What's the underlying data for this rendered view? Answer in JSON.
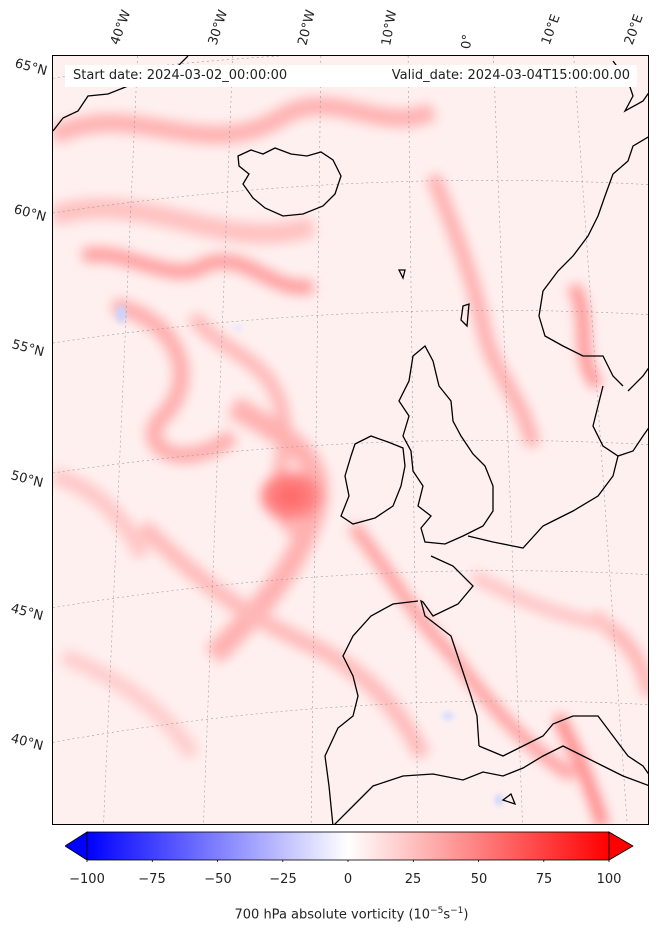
{
  "header": {
    "start_date": "Start date: 2024-03-02_00:00:00",
    "valid_date": "Valid_date: 2024-03-04T15:00:00.00"
  },
  "longitude_labels": [
    "40°W",
    "30°W",
    "20°W",
    "10°W",
    "0°",
    "10°E",
    "20°E"
  ],
  "latitude_labels": [
    "65°N",
    "60°N",
    "55°N",
    "50°N",
    "45°N",
    "40°N"
  ],
  "colorbar": {
    "ticks": [
      "−100",
      "−75",
      "−50",
      "−25",
      "0",
      "25",
      "50",
      "75",
      "100"
    ],
    "title": "700 hPa absolute vorticity (10",
    "title_exp1": "−5",
    "title_mid": "s",
    "title_exp2": "−1",
    "title_end": ")",
    "min": -100,
    "max": 100,
    "colors": {
      "negative": "#0000ff",
      "zero": "#ffffff",
      "positive": "#ff0000"
    }
  },
  "map": {
    "projection": "Lambert conformal",
    "extent": "North Atlantic / Western Europe",
    "coastline_color": "#000000",
    "gridline_style": "dotted grey"
  }
}
